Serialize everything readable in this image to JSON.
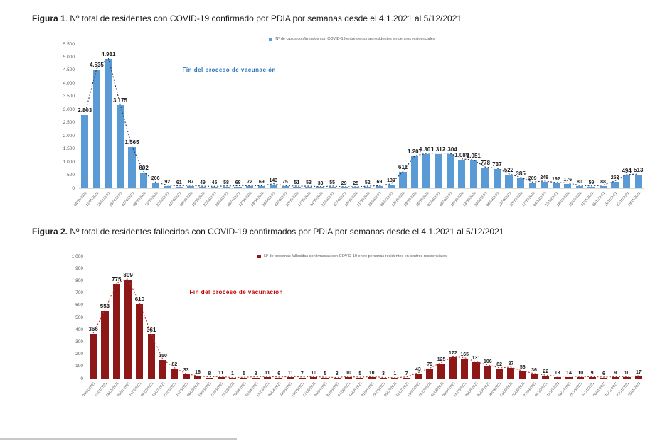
{
  "chart_data": [
    {
      "type": "bar",
      "title": "Figura 1. Nº total de residentes con COVID-19 confirmado por PDIA por semanas desde el 4.1.2021 al 5/12/2021",
      "title_prefix": "Figura 1",
      "title_text": ". Nº total de residentes con COVID-19 confirmado por PDIA por semanas desde el 4.1.2021 al 5/12/2021",
      "legend": "Nº de casos confirmados con COVID-19 entre personas residentes en centros residenciales",
      "legend_position": "top-center",
      "annotation": "Fin del proceso de vacunación",
      "grid": false,
      "ylim": [
        0,
        5500
      ],
      "yticks": [
        "5.500",
        "5.000",
        "4.500",
        "4.000",
        "3.500",
        "3.000",
        "2.500",
        "2.000",
        "1.500",
        "1.000",
        "500",
        "0"
      ],
      "vline_after_index": 7,
      "categories": [
        "04/01/2021",
        "11/01/2021",
        "18/01/2021",
        "25/01/2021",
        "01/02/2021",
        "08/02/2021",
        "15/02/2021",
        "22/02/2021",
        "01/03/2021",
        "08/03/2021",
        "15/03/2021",
        "22/03/2021",
        "29/03/2021",
        "05/04/2021",
        "12/04/2021",
        "19/04/2021",
        "26/04/2021",
        "03/05/2021",
        "10/05/2021",
        "17/05/2021",
        "24/05/2021",
        "31/05/2021",
        "07/06/2021",
        "14/06/2021",
        "21/06/2021",
        "28/06/2021",
        "05/07/2021",
        "12/07/2021",
        "19/07/2021",
        "26/07/2021",
        "02/08/2021",
        "09/08/2021",
        "16/08/2021",
        "23/08/2021",
        "30/08/2021",
        "06/09/2021",
        "13/09/2021",
        "20/09/2021",
        "27/09/2021",
        "04/10/2021",
        "11/10/2021",
        "18/10/2021",
        "25/10/2021",
        "01/11/2021",
        "08/11/2021",
        "15/11/2021",
        "22/11/2021",
        "29/11/2021"
      ],
      "values": [
        2803,
        4535,
        4931,
        3175,
        1565,
        602,
        206,
        92,
        61,
        87,
        49,
        45,
        58,
        68,
        72,
        69,
        143,
        75,
        51,
        53,
        33,
        55,
        29,
        25,
        52,
        69,
        139,
        611,
        1207,
        1301,
        1312,
        1304,
        1089,
        1051,
        778,
        737,
        522,
        385,
        209,
        248,
        192,
        176,
        80,
        59,
        88,
        253,
        494,
        513
      ],
      "value_labels": [
        "2.803",
        "4.535",
        "4.931",
        "3.175",
        "1.565",
        "602",
        "206",
        "92",
        "61",
        "87",
        "49",
        "45",
        "58",
        "68",
        "72",
        "69",
        "143",
        "75",
        "51",
        "53",
        "33",
        "55",
        "29",
        "25",
        "52",
        "69",
        "139",
        "611",
        "1.207",
        "1.301",
        "1.312",
        "1.304",
        "1.089",
        "1.051",
        "778",
        "737",
        "522",
        "385",
        "209",
        "248",
        "192",
        "176",
        "80",
        "59",
        "88",
        "253",
        "494",
        "513"
      ],
      "colors": {
        "bar": "#5b9bd5",
        "trend": "#1f3864",
        "vline": "#2e75b6",
        "annotation": "#2e75b6"
      }
    },
    {
      "type": "bar",
      "title": "Figura 2. Nº total de residentes fallecidos con COVID-19 confirmados por PDIA por semanas desde el 4.1.2021 al 5/12/2021",
      "title_prefix": "Figura 2.",
      "title_text": " Nº total de residentes fallecidos con COVID-19 confirmados por PDIA por semanas desde el 4.1.2021 al 5/12/2021",
      "legend": "Nº de personas fallecidas confirmadas con COVID-19 entre personas residentes en centros residenciales",
      "legend_position": "top-center",
      "annotation": "Fin del proceso de vacunación",
      "grid": false,
      "ylim": [
        0,
        1000
      ],
      "yticks": [
        "1.000",
        "900",
        "800",
        "700",
        "600",
        "500",
        "400",
        "300",
        "200",
        "100",
        "0"
      ],
      "vline_after_index": 7,
      "categories": [
        "04/01/2021",
        "11/01/2021",
        "18/01/2021",
        "25/01/2021",
        "01/02/2021",
        "08/02/2021",
        "15/02/2021",
        "22/02/2021",
        "01/03/2021",
        "08/03/2021",
        "15/03/2021",
        "22/03/2021",
        "29/03/2021",
        "05/04/2021",
        "12/04/2021",
        "19/04/2021",
        "26/04/2021",
        "03/05/2021",
        "10/05/2021",
        "17/05/2021",
        "24/05/2021",
        "31/05/2021",
        "07/06/2021",
        "14/06/2021",
        "21/06/2021",
        "28/06/2021",
        "05/07/2021",
        "12/07/2021",
        "19/07/2021",
        "26/07/2021",
        "02/08/2021",
        "09/08/2021",
        "16/08/2021",
        "23/08/2021",
        "30/08/2021",
        "06/09/2021",
        "13/09/2021",
        "20/09/2021",
        "27/09/2021",
        "04/10/2021",
        "11/10/2021",
        "18/10/2021",
        "25/10/2021",
        "01/11/2021",
        "08/11/2021",
        "15/11/2021",
        "22/11/2021",
        "29/11/2021"
      ],
      "values": [
        366,
        553,
        775,
        809,
        610,
        361,
        150,
        82,
        33,
        16,
        8,
        11,
        1,
        5,
        8,
        11,
        6,
        11,
        7,
        10,
        5,
        3,
        10,
        5,
        10,
        3,
        1,
        7,
        43,
        79,
        125,
        172,
        165,
        131,
        106,
        82,
        87,
        56,
        36,
        22,
        13,
        14,
        10,
        9,
        6,
        9,
        10,
        17
      ],
      "value_labels": [
        "366",
        "553",
        "775",
        "809",
        "610",
        "361",
        "150",
        "82",
        "33",
        "16",
        "8",
        "11",
        "1",
        "5",
        "8",
        "11",
        "6",
        "11",
        "7",
        "10",
        "5",
        "3",
        "10",
        "5",
        "10",
        "3",
        "1",
        "7",
        "43",
        "79",
        "125",
        "172",
        "165",
        "131",
        "106",
        "82",
        "87",
        "56",
        "36",
        "22",
        "13",
        "14",
        "10",
        "9",
        "6",
        "9",
        "10",
        "17"
      ],
      "colors": {
        "bar": "#8e1717",
        "trend": "#b03a2e",
        "vline": "#b02020",
        "annotation": "#c00000"
      }
    }
  ]
}
